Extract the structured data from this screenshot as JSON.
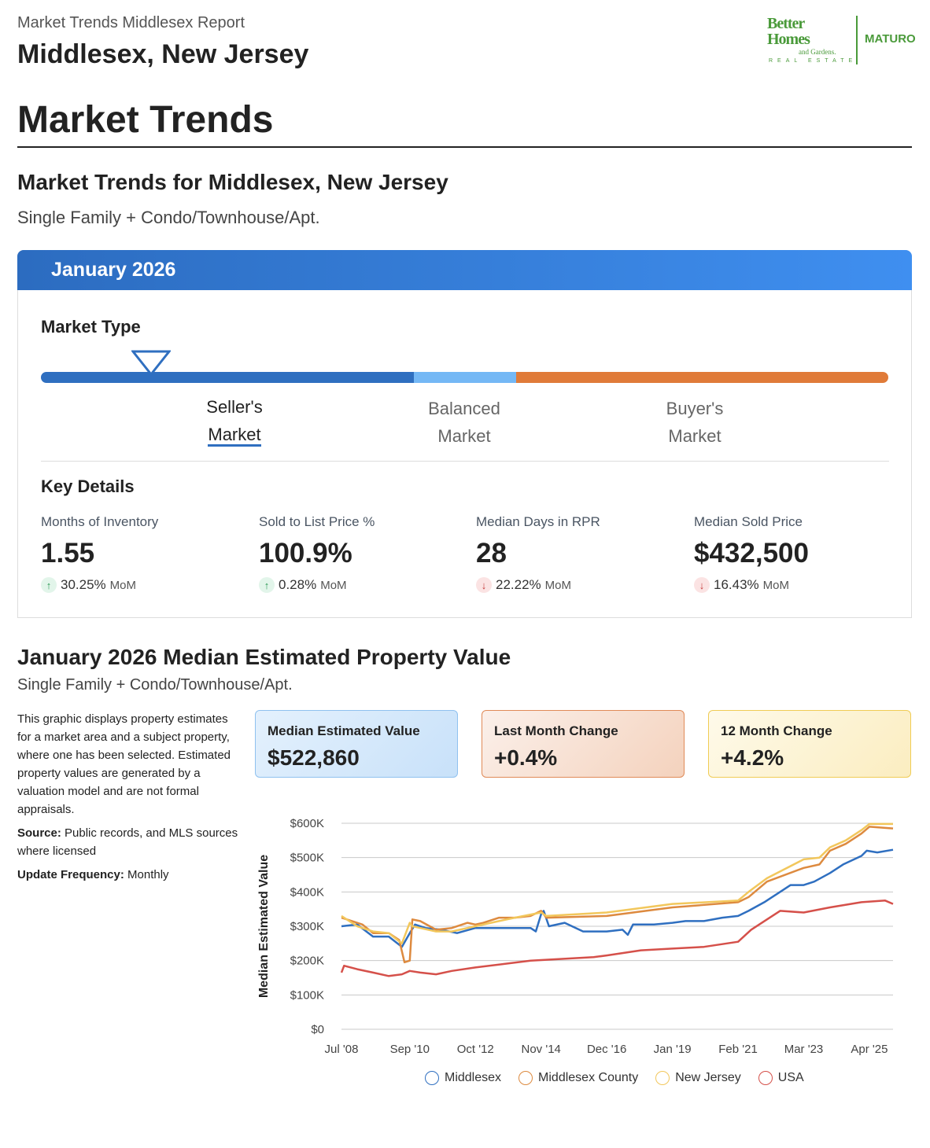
{
  "header": {
    "report_title": "Market Trends Middlesex Report",
    "location": "Middlesex, New Jersey"
  },
  "logo": {
    "line1": "Better",
    "line2": "Homes",
    "line3": "and Gardens.",
    "line4": "REAL ESTATE",
    "brand": "MATURO"
  },
  "page_title": "Market Trends",
  "section1": {
    "title": "Market Trends for Middlesex, New Jersey",
    "property_type": "Single Family + Condo/Townhouse/Apt."
  },
  "card": {
    "month": "January 2026",
    "market_type_label": "Market Type",
    "market_type_position_pct": 13,
    "segments": [
      {
        "line1": "Seller's",
        "line2": "Market",
        "active": true
      },
      {
        "line1": "Balanced",
        "line2": "Market",
        "active": false
      },
      {
        "line1": "Buyer's",
        "line2": "Market",
        "active": false
      }
    ],
    "colors": {
      "seller": "#2f6fc0",
      "balanced": "#74b8f5",
      "buyer": "#e07b39"
    },
    "key_details_label": "Key Details",
    "metrics": [
      {
        "name": "Months of Inventory",
        "value": "1.55",
        "direction": "up",
        "change": "30.25%",
        "period": "MoM"
      },
      {
        "name": "Sold to List Price %",
        "value": "100.9%",
        "direction": "up",
        "change": "0.28%",
        "period": "MoM"
      },
      {
        "name": "Median Days in RPR",
        "value": "28",
        "direction": "down",
        "change": "22.22%",
        "period": "MoM"
      },
      {
        "name": "Median Sold Price",
        "value": "$432,500",
        "direction": "down",
        "change": "16.43%",
        "period": "MoM"
      }
    ]
  },
  "section2": {
    "title": "January 2026 Median Estimated Property Value",
    "property_type": "Single Family + Condo/Townhouse/Apt.",
    "description": "This graphic displays property estimates for a market area and a subject property, where one has been selected. Estimated property values are generated by a valuation model and are not formal appraisals.",
    "source_label": "Source:",
    "source_text": " Public records, and MLS sources where licensed",
    "frequency_label": "Update Frequency:",
    "frequency_text": " Monthly",
    "boxes": [
      {
        "label": "Median Estimated Value",
        "value": "$522,860"
      },
      {
        "label": "Last Month Change",
        "value": "+0.4%"
      },
      {
        "label": "12 Month Change",
        "value": "+4.2%"
      }
    ]
  },
  "chart_data": {
    "type": "line",
    "ylabel": "Median Estimated Value",
    "ylim": [
      0,
      600000
    ],
    "yticks": [
      "$0",
      "$100K",
      "$200K",
      "$300K",
      "$400K",
      "$500K",
      "$600K"
    ],
    "xticks": [
      {
        "date": "2008-07",
        "label": "Jul '08"
      },
      {
        "date": "2010-09",
        "label": "Sep '10"
      },
      {
        "date": "2012-10",
        "label": "Oct '12"
      },
      {
        "date": "2014-11",
        "label": "Nov '14"
      },
      {
        "date": "2016-12",
        "label": "Dec '16"
      },
      {
        "date": "2019-01",
        "label": "Jan '19"
      },
      {
        "date": "2021-02",
        "label": "Feb '21"
      },
      {
        "date": "2023-03",
        "label": "Mar '23"
      },
      {
        "date": "2025-04",
        "label": "Apr '25"
      }
    ],
    "xlim": [
      "2008-07",
      "2026-01"
    ],
    "grid": true,
    "legend": "bottom",
    "series": [
      {
        "name": "Middlesex",
        "color": "#2f6fc0",
        "points": [
          [
            "2008-07",
            300000
          ],
          [
            "2009-01",
            305000
          ],
          [
            "2009-07",
            270000
          ],
          [
            "2010-01",
            270000
          ],
          [
            "2010-06",
            240000
          ],
          [
            "2010-09",
            280000
          ],
          [
            "2010-11",
            305000
          ],
          [
            "2011-03",
            295000
          ],
          [
            "2011-09",
            290000
          ],
          [
            "2012-03",
            280000
          ],
          [
            "2012-10",
            295000
          ],
          [
            "2013-01",
            295000
          ],
          [
            "2014-07",
            295000
          ],
          [
            "2014-09",
            285000
          ],
          [
            "2014-11",
            335000
          ],
          [
            "2014-12",
            345000
          ],
          [
            "2015-02",
            300000
          ],
          [
            "2015-08",
            310000
          ],
          [
            "2016-03",
            285000
          ],
          [
            "2016-12",
            285000
          ],
          [
            "2017-06",
            290000
          ],
          [
            "2017-08",
            275000
          ],
          [
            "2017-10",
            305000
          ],
          [
            "2018-06",
            305000
          ],
          [
            "2019-01",
            310000
          ],
          [
            "2019-06",
            315000
          ],
          [
            "2020-01",
            315000
          ],
          [
            "2020-08",
            325000
          ],
          [
            "2021-02",
            330000
          ],
          [
            "2021-06",
            345000
          ],
          [
            "2021-12",
            370000
          ],
          [
            "2022-06",
            400000
          ],
          [
            "2022-10",
            420000
          ],
          [
            "2023-03",
            420000
          ],
          [
            "2023-07",
            430000
          ],
          [
            "2024-01",
            455000
          ],
          [
            "2024-06",
            480000
          ],
          [
            "2025-01",
            505000
          ],
          [
            "2025-03",
            520000
          ],
          [
            "2025-07",
            515000
          ],
          [
            "2026-01",
            522860
          ]
        ]
      },
      {
        "name": "Middlesex County",
        "color": "#dd8a3f",
        "points": [
          [
            "2008-07",
            325000
          ],
          [
            "2009-03",
            305000
          ],
          [
            "2009-07",
            280000
          ],
          [
            "2010-01",
            280000
          ],
          [
            "2010-05",
            260000
          ],
          [
            "2010-07",
            195000
          ],
          [
            "2010-09",
            200000
          ],
          [
            "2010-10",
            320000
          ],
          [
            "2011-01",
            315000
          ],
          [
            "2011-07",
            290000
          ],
          [
            "2012-01",
            295000
          ],
          [
            "2012-07",
            310000
          ],
          [
            "2012-10",
            305000
          ],
          [
            "2013-01",
            310000
          ],
          [
            "2013-07",
            325000
          ],
          [
            "2014-01",
            325000
          ],
          [
            "2014-07",
            330000
          ],
          [
            "2014-11",
            345000
          ],
          [
            "2015-01",
            325000
          ],
          [
            "2016-12",
            330000
          ],
          [
            "2019-01",
            355000
          ],
          [
            "2021-02",
            370000
          ],
          [
            "2021-06",
            385000
          ],
          [
            "2022-01",
            430000
          ],
          [
            "2023-03",
            470000
          ],
          [
            "2023-09",
            480000
          ],
          [
            "2024-01",
            520000
          ],
          [
            "2024-07",
            540000
          ],
          [
            "2025-01",
            570000
          ],
          [
            "2025-04",
            590000
          ],
          [
            "2026-01",
            585000
          ]
        ]
      },
      {
        "name": "New Jersey",
        "color": "#f2c75c",
        "points": [
          [
            "2008-07",
            330000
          ],
          [
            "2009-01",
            300000
          ],
          [
            "2009-07",
            285000
          ],
          [
            "2010-01",
            280000
          ],
          [
            "2010-06",
            250000
          ],
          [
            "2010-09",
            310000
          ],
          [
            "2010-10",
            300000
          ],
          [
            "2011-01",
            295000
          ],
          [
            "2011-07",
            285000
          ],
          [
            "2012-01",
            285000
          ],
          [
            "2012-10",
            300000
          ],
          [
            "2013-07",
            315000
          ],
          [
            "2014-01",
            325000
          ],
          [
            "2014-11",
            340000
          ],
          [
            "2015-01",
            330000
          ],
          [
            "2016-12",
            340000
          ],
          [
            "2019-01",
            365000
          ],
          [
            "2021-02",
            375000
          ],
          [
            "2021-06",
            400000
          ],
          [
            "2022-01",
            440000
          ],
          [
            "2023-03",
            495000
          ],
          [
            "2023-09",
            500000
          ],
          [
            "2024-01",
            530000
          ],
          [
            "2024-07",
            550000
          ],
          [
            "2025-01",
            580000
          ],
          [
            "2025-04",
            598000
          ],
          [
            "2026-01",
            598000
          ]
        ]
      },
      {
        "name": "USA",
        "color": "#d5504a",
        "points": [
          [
            "2008-07",
            165000
          ],
          [
            "2008-08",
            185000
          ],
          [
            "2009-01",
            175000
          ],
          [
            "2009-07",
            165000
          ],
          [
            "2010-01",
            155000
          ],
          [
            "2010-06",
            160000
          ],
          [
            "2010-09",
            170000
          ],
          [
            "2011-01",
            165000
          ],
          [
            "2011-07",
            160000
          ],
          [
            "2012-01",
            170000
          ],
          [
            "2012-10",
            180000
          ],
          [
            "2014-07",
            200000
          ],
          [
            "2016-07",
            210000
          ],
          [
            "2016-12",
            215000
          ],
          [
            "2018-01",
            230000
          ],
          [
            "2019-01",
            235000
          ],
          [
            "2020-01",
            240000
          ],
          [
            "2021-02",
            255000
          ],
          [
            "2021-07",
            290000
          ],
          [
            "2022-01",
            320000
          ],
          [
            "2022-06",
            345000
          ],
          [
            "2023-03",
            340000
          ],
          [
            "2024-01",
            355000
          ],
          [
            "2025-01",
            370000
          ],
          [
            "2025-10",
            375000
          ],
          [
            "2026-01",
            365000
          ]
        ]
      }
    ]
  }
}
